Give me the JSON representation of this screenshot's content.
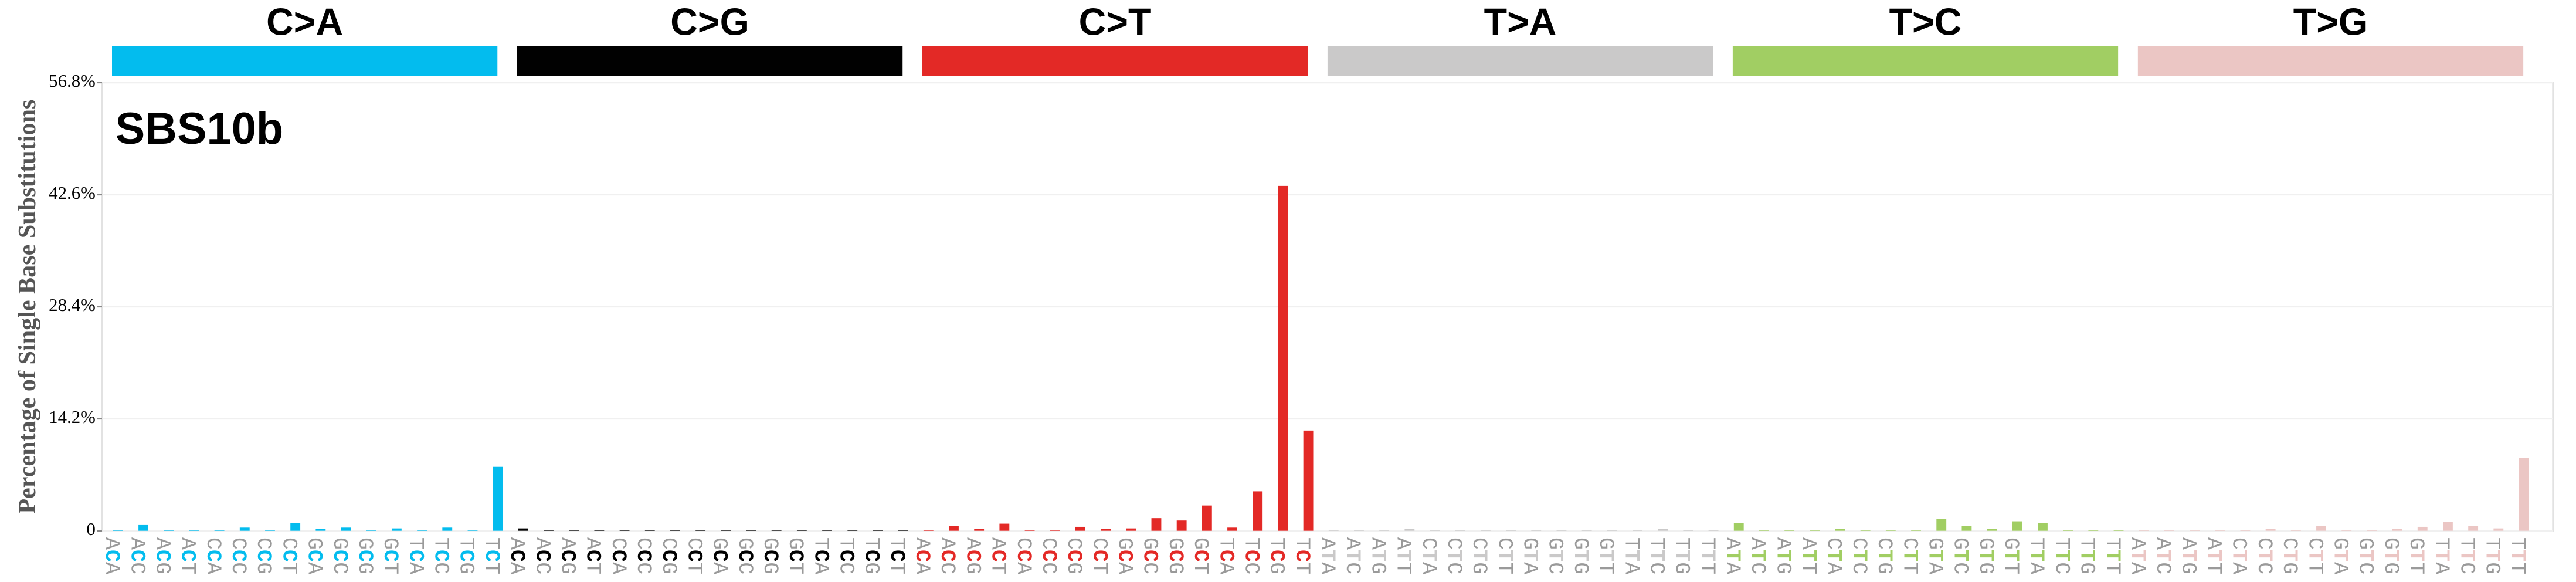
{
  "chart_data": {
    "type": "bar",
    "annotation": "SBS10b",
    "y_label": "Percentage of Single Base Substitutions",
    "ylim": [
      0,
      56.8
    ],
    "yticks": [
      0,
      {
        "value": 14.2,
        "label": "14.2%"
      },
      {
        "value": 28.4,
        "label": "28.4%"
      },
      {
        "value": 42.6,
        "label": "42.6%"
      },
      {
        "value": 56.8,
        "label": "56.8%"
      }
    ],
    "grid": true,
    "series": [
      {
        "name": "C>A",
        "color": "#03bcee",
        "categories": [
          "ACA",
          "ACC",
          "ACG",
          "ACT",
          "CCA",
          "CCC",
          "CCG",
          "CCT",
          "GCA",
          "GCC",
          "GCG",
          "GCT",
          "TCA",
          "TCC",
          "TCG",
          "TCT"
        ],
        "values": [
          0.1,
          0.8,
          0.05,
          0.1,
          0.1,
          0.4,
          0.05,
          1.0,
          0.2,
          0.4,
          0.05,
          0.3,
          0.1,
          0.4,
          0.05,
          8.1
        ]
      },
      {
        "name": "C>G",
        "color": "#010101",
        "categories": [
          "ACA",
          "ACC",
          "ACG",
          "ACT",
          "CCA",
          "CCC",
          "CCG",
          "CCT",
          "GCA",
          "GCC",
          "GCG",
          "GCT",
          "TCA",
          "TCC",
          "TCG",
          "TCT"
        ],
        "values": [
          0.3,
          0.05,
          0.05,
          0.05,
          0.05,
          0.05,
          0.05,
          0.05,
          0.05,
          0.05,
          0.05,
          0.05,
          0.05,
          0.05,
          0.05,
          0.05
        ]
      },
      {
        "name": "C>T",
        "color": "#e32926",
        "categories": [
          "ACA",
          "ACC",
          "ACG",
          "ACT",
          "CCA",
          "CCC",
          "CCG",
          "CCT",
          "GCA",
          "GCC",
          "GCG",
          "GCT",
          "TCA",
          "TCC",
          "TCG",
          "TCT"
        ],
        "values": [
          0.1,
          0.6,
          0.2,
          0.9,
          0.1,
          0.1,
          0.5,
          0.2,
          0.3,
          1.6,
          1.3,
          3.2,
          0.4,
          5.0,
          43.7,
          12.7
        ]
      },
      {
        "name": "T>A",
        "color": "#cac9c9",
        "categories": [
          "ATA",
          "ATC",
          "ATG",
          "ATT",
          "CTA",
          "CTC",
          "CTG",
          "CTT",
          "GTA",
          "GTC",
          "GTG",
          "GTT",
          "TTA",
          "TTC",
          "TTG",
          "TTT"
        ],
        "values": [
          0.1,
          0.05,
          0.05,
          0.2,
          0.05,
          0.05,
          0.05,
          0.05,
          0.05,
          0.05,
          0.05,
          0.05,
          0.05,
          0.2,
          0.05,
          0.1
        ]
      },
      {
        "name": "T>C",
        "color": "#a1ce63",
        "categories": [
          "ATA",
          "ATC",
          "ATG",
          "ATT",
          "CTA",
          "CTC",
          "CTG",
          "CTT",
          "GTA",
          "GTC",
          "GTG",
          "GTT",
          "TTA",
          "TTC",
          "TTG",
          "TTT"
        ],
        "values": [
          1.0,
          0.1,
          0.1,
          0.1,
          0.2,
          0.1,
          0.05,
          0.1,
          1.5,
          0.6,
          0.2,
          1.2,
          1.0,
          0.1,
          0.1,
          0.1
        ]
      },
      {
        "name": "T>G",
        "color": "#ebc6c4",
        "categories": [
          "ATA",
          "ATC",
          "ATG",
          "ATT",
          "CTA",
          "CTC",
          "CTG",
          "CTT",
          "GTA",
          "GTC",
          "GTG",
          "GTT",
          "TTA",
          "TTC",
          "TTG",
          "TTT"
        ],
        "values": [
          0.05,
          0.1,
          0.05,
          0.05,
          0.1,
          0.2,
          0.05,
          0.6,
          0.1,
          0.1,
          0.2,
          0.5,
          1.1,
          0.6,
          0.3,
          9.2
        ]
      }
    ]
  }
}
